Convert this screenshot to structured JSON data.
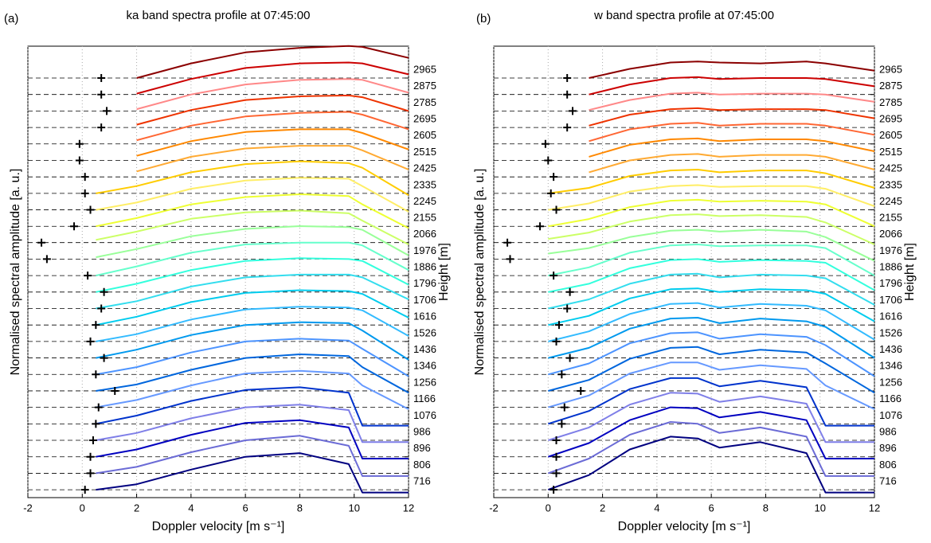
{
  "chart_data": [
    {
      "type": "line",
      "panel_label": "(a)",
      "title": "ka band spectra profile at 07:45:00",
      "xlabel": "Doppler velocity [m s⁻¹]",
      "ylabel": "Normalised spectral amplitude [a. u.]",
      "y2label": "Height [m]",
      "xlim": [
        -2,
        12
      ],
      "xticks": [
        -2,
        0,
        2,
        4,
        6,
        8,
        10,
        12
      ],
      "grid": true,
      "y2lim": [
        673,
        3139
      ],
      "y2ticks": [
        716,
        806,
        896,
        986,
        1076,
        1166,
        1256,
        1346,
        1436,
        1526,
        1616,
        1706,
        1796,
        1886,
        1976,
        2066,
        2155,
        2245,
        2335,
        2425,
        2515,
        2605,
        2695,
        2785,
        2875,
        2965
      ],
      "markers": [
        0.1,
        0.3,
        0.3,
        0.4,
        0.5,
        0.6,
        1.2,
        0.5,
        0.8,
        0.3,
        0.5,
        0.7,
        0.8,
        0.2,
        -1.3,
        -1.5,
        -0.3,
        0.3,
        0.1,
        0.1,
        -0.1,
        -0.1,
        0.7,
        0.9,
        0.7,
        0.7
      ],
      "x": [
        0.5,
        2,
        4,
        6,
        8,
        9.8,
        10.3,
        12
      ],
      "series": [
        {
          "color": "#000080",
          "values": [
            0,
            30,
            110,
            180,
            200,
            140,
            -15,
            -15
          ]
        },
        {
          "color": "#6b6bd6",
          "values": [
            0,
            35,
            115,
            180,
            205,
            150,
            -15,
            -15
          ]
        },
        {
          "color": "#0000c0",
          "values": [
            0,
            40,
            120,
            185,
            200,
            160,
            -10,
            -10
          ]
        },
        {
          "color": "#7f7fe8",
          "values": [
            0,
            40,
            120,
            180,
            195,
            165,
            -10,
            -10
          ]
        },
        {
          "color": "#0033cc",
          "values": [
            0,
            45,
            125,
            185,
            200,
            170,
            -10,
            -10
          ]
        },
        {
          "color": "#6699ff",
          "values": [
            0,
            40,
            120,
            185,
            200,
            185,
            120,
            -10
          ]
        },
        {
          "color": "#0066dd",
          "values": [
            0,
            35,
            115,
            180,
            200,
            190,
            130,
            -10
          ]
        },
        {
          "color": "#4d94ff",
          "values": [
            0,
            40,
            120,
            180,
            195,
            185,
            140,
            -10
          ]
        },
        {
          "color": "#0099ee",
          "values": [
            0,
            45,
            125,
            180,
            195,
            190,
            150,
            -10
          ]
        },
        {
          "color": "#33bbff",
          "values": [
            0,
            40,
            120,
            175,
            190,
            185,
            170,
            30
          ]
        },
        {
          "color": "#00ccee",
          "values": [
            0,
            45,
            125,
            175,
            190,
            185,
            170,
            40
          ]
        },
        {
          "color": "#33ddee",
          "values": [
            0,
            40,
            120,
            170,
            185,
            185,
            170,
            50
          ]
        },
        {
          "color": "#33ffdd",
          "values": [
            0,
            45,
            120,
            170,
            185,
            180,
            170,
            40
          ]
        },
        {
          "color": "#66ffcc",
          "values": [
            0,
            50,
            125,
            170,
            180,
            180,
            165,
            30
          ]
        },
        {
          "color": "#99ff99",
          "values": [
            10,
            55,
            125,
            165,
            180,
            175,
            160,
            20
          ]
        },
        {
          "color": "#ccff66",
          "values": [
            15,
            60,
            130,
            165,
            175,
            160,
            120,
            -10
          ]
        },
        {
          "color": "#eeff33",
          "values": [
            0,
            45,
            120,
            160,
            175,
            165,
            120,
            -10
          ]
        },
        {
          "color": "#ffee66",
          "values": [
            0,
            40,
            115,
            160,
            175,
            170,
            130,
            -10
          ]
        },
        {
          "color": "#ffcc00",
          "values": [
            0,
            40,
            115,
            160,
            175,
            165,
            140,
            -10
          ]
        },
        {
          "color": "#ffaa33",
          "values": [
            null,
            30,
            110,
            155,
            170,
            170,
            145,
            40
          ]
        },
        {
          "color": "#ff8800",
          "values": [
            null,
            25,
            105,
            155,
            170,
            170,
            150,
            60
          ]
        },
        {
          "color": "#ff6633",
          "values": [
            null,
            20,
            100,
            150,
            170,
            175,
            160,
            80
          ]
        },
        {
          "color": "#ee3300",
          "values": [
            null,
            15,
            95,
            150,
            170,
            175,
            165,
            90
          ]
        },
        {
          "color": "#ff8888",
          "values": [
            null,
            10,
            90,
            145,
            170,
            175,
            170,
            100
          ]
        },
        {
          "color": "#cc0000",
          "values": [
            null,
            5,
            85,
            145,
            170,
            175,
            170,
            110
          ]
        },
        {
          "color": "#8b0000",
          "values": [
            null,
            0,
            80,
            140,
            165,
            175,
            170,
            110
          ]
        }
      ]
    },
    {
      "type": "line",
      "panel_label": "(b)",
      "title": "w band spectra profile at 07:45:00",
      "xlabel": "Doppler velocity [m s⁻¹]",
      "ylabel": "Normalised spectral amplitude [a. u.]",
      "y2label": "Height [m]",
      "xlim": [
        -2,
        12
      ],
      "xticks": [
        -2,
        0,
        2,
        4,
        6,
        8,
        10,
        12
      ],
      "grid": true,
      "y2lim": [
        673,
        3139
      ],
      "y2ticks": [
        716,
        806,
        896,
        986,
        1076,
        1166,
        1256,
        1346,
        1436,
        1526,
        1616,
        1706,
        1796,
        1886,
        1976,
        2066,
        2155,
        2245,
        2335,
        2425,
        2515,
        2605,
        2695,
        2785,
        2875,
        2965
      ],
      "markers": [
        0.2,
        0.3,
        0.3,
        0.3,
        0.5,
        0.6,
        1.2,
        0.5,
        0.8,
        0.3,
        0.4,
        0.7,
        0.8,
        0.2,
        -1.4,
        -1.5,
        -0.3,
        0.3,
        0.1,
        0.2,
        0,
        -0.1,
        0.7,
        0.9,
        0.7,
        0.7
      ],
      "x": [
        0,
        1.5,
        3,
        4.5,
        5.5,
        6.3,
        7.8,
        9.5,
        10.2,
        12
      ],
      "series": [
        {
          "color": "#000080",
          "values": [
            0,
            80,
            220,
            290,
            280,
            230,
            260,
            200,
            -15,
            -15
          ]
        },
        {
          "color": "#6b6bd6",
          "values": [
            0,
            80,
            210,
            280,
            270,
            220,
            250,
            200,
            -15,
            -15
          ]
        },
        {
          "color": "#0000c0",
          "values": [
            0,
            75,
            200,
            270,
            265,
            215,
            245,
            200,
            -10,
            -10
          ]
        },
        {
          "color": "#7f7fe8",
          "values": [
            0,
            70,
            195,
            260,
            255,
            210,
            240,
            200,
            -10,
            -10
          ]
        },
        {
          "color": "#0033cc",
          "values": [
            0,
            70,
            190,
            250,
            250,
            205,
            235,
            200,
            -10,
            -10
          ]
        },
        {
          "color": "#6699ff",
          "values": [
            0,
            65,
            185,
            245,
            245,
            205,
            230,
            210,
            120,
            -10
          ]
        },
        {
          "color": "#0066dd",
          "values": [
            0,
            60,
            175,
            235,
            240,
            200,
            225,
            210,
            150,
            -10
          ]
        },
        {
          "color": "#4d94ff",
          "values": [
            0,
            60,
            170,
            225,
            230,
            195,
            220,
            205,
            160,
            -10
          ]
        },
        {
          "color": "#0099ee",
          "values": [
            0,
            55,
            160,
            215,
            220,
            190,
            215,
            200,
            170,
            0
          ]
        },
        {
          "color": "#33bbff",
          "values": [
            0,
            55,
            150,
            205,
            210,
            185,
            205,
            195,
            170,
            10
          ]
        },
        {
          "color": "#00ccee",
          "values": [
            0,
            50,
            145,
            195,
            200,
            180,
            195,
            190,
            170,
            20
          ]
        },
        {
          "color": "#33ddee",
          "values": [
            0,
            50,
            135,
            185,
            190,
            170,
            185,
            180,
            165,
            20
          ]
        },
        {
          "color": "#33ffdd",
          "values": [
            0,
            45,
            130,
            175,
            180,
            165,
            175,
            170,
            160,
            10
          ]
        },
        {
          "color": "#66ffcc",
          "values": [
            0,
            45,
            125,
            165,
            170,
            160,
            165,
            165,
            150,
            0
          ]
        },
        {
          "color": "#99ff99",
          "values": [
            30,
            60,
            120,
            155,
            160,
            150,
            160,
            150,
            120,
            -10
          ]
        },
        {
          "color": "#ccff66",
          "values": [
            20,
            55,
            115,
            150,
            155,
            145,
            150,
            140,
            110,
            -10
          ]
        },
        {
          "color": "#eeff33",
          "values": [
            0,
            40,
            105,
            140,
            145,
            135,
            140,
            135,
            120,
            0
          ]
        },
        {
          "color": "#ffee66",
          "values": [
            0,
            35,
            100,
            130,
            135,
            125,
            130,
            130,
            115,
            20
          ]
        },
        {
          "color": "#ffcc00",
          "values": [
            0,
            30,
            95,
            125,
            130,
            115,
            125,
            125,
            110,
            30
          ]
        },
        {
          "color": "#ffaa33",
          "values": [
            null,
            25,
            90,
            120,
            125,
            110,
            120,
            120,
            110,
            40
          ]
        },
        {
          "color": "#ff8800",
          "values": [
            null,
            20,
            85,
            115,
            120,
            105,
            115,
            115,
            105,
            50
          ]
        },
        {
          "color": "#ff6633",
          "values": [
            null,
            15,
            80,
            110,
            115,
            100,
            110,
            110,
            100,
            50
          ]
        },
        {
          "color": "#ee3300",
          "values": [
            null,
            10,
            70,
            100,
            105,
            95,
            100,
            100,
            95,
            50
          ]
        },
        {
          "color": "#ff8888",
          "values": [
            null,
            5,
            60,
            95,
            100,
            90,
            95,
            95,
            90,
            50
          ]
        },
        {
          "color": "#cc0000",
          "values": [
            null,
            0,
            55,
            90,
            95,
            85,
            90,
            90,
            85,
            45
          ]
        },
        {
          "color": "#8b0000",
          "values": [
            null,
            0,
            50,
            85,
            90,
            85,
            80,
            90,
            80,
            40
          ]
        }
      ]
    }
  ]
}
